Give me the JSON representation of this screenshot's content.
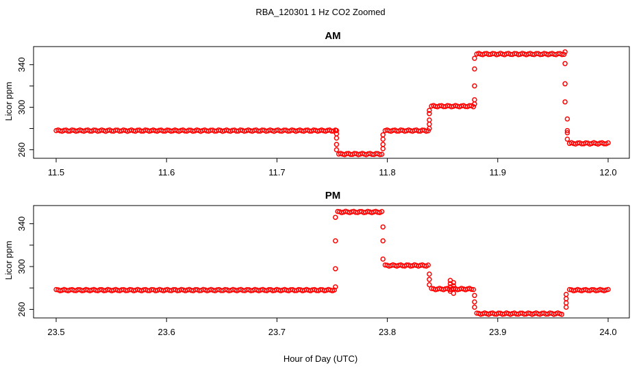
{
  "title": "RBA_120301  1 Hz CO2 Zoomed",
  "xlabel": "Hour of Day (UTC)",
  "chart_data": [
    {
      "type": "scatter",
      "title": "AM",
      "ylabel": "Licor ppm",
      "xlim": [
        11.5,
        12.0
      ],
      "ylim": [
        252,
        357
      ],
      "xticks": [
        "11.5",
        "11.6",
        "11.7",
        "11.8",
        "11.9",
        "12.0"
      ],
      "yticks": [
        "260",
        "300",
        "340"
      ],
      "minor_yticks": [
        280,
        320
      ],
      "marker": "open-circle",
      "color": "#ff0000",
      "segments": [
        {
          "x": [
            11.5,
            11.753
          ],
          "y": 278
        },
        {
          "x": [
            11.756,
            11.795
          ],
          "y": 256
        },
        {
          "x": [
            11.798,
            11.837
          ],
          "y": 278
        },
        {
          "x": [
            11.84,
            11.878
          ],
          "y": 301
        },
        {
          "x": [
            11.881,
            11.96
          ],
          "y": 350
        },
        {
          "x": [
            11.965,
            12.0
          ],
          "y": 266
        }
      ],
      "transitions": [
        {
          "x": 11.754,
          "y": [
            278,
            275,
            271,
            265,
            260
          ]
        },
        {
          "x": 11.796,
          "y": [
            261,
            265,
            270,
            274
          ]
        },
        {
          "x": 11.838,
          "y": [
            280,
            284,
            288,
            294,
            297
          ]
        },
        {
          "x": 11.879,
          "y": [
            303,
            307,
            320,
            336,
            346
          ]
        },
        {
          "x": 11.961,
          "y": [
            352,
            341,
            322,
            305
          ]
        },
        {
          "x": 11.963,
          "y": [
            289,
            278,
            276,
            270
          ]
        }
      ]
    },
    {
      "type": "scatter",
      "title": "PM",
      "ylabel": "Licor ppm",
      "xlim": [
        23.5,
        24.0
      ],
      "ylim": [
        252,
        357
      ],
      "xticks": [
        "23.5",
        "23.6",
        "23.7",
        "23.8",
        "23.9",
        "24.0"
      ],
      "yticks": [
        "260",
        "300",
        "340"
      ],
      "minor_yticks": [
        280,
        320
      ],
      "marker": "open-circle",
      "color": "#ff0000",
      "segments": [
        {
          "x": [
            23.5,
            23.752
          ],
          "y": 278
        },
        {
          "x": [
            23.755,
            23.795
          ],
          "y": 351
        },
        {
          "x": [
            23.798,
            23.837
          ],
          "y": 301
        },
        {
          "x": [
            23.84,
            23.878
          ],
          "y": 279
        },
        {
          "x": [
            23.881,
            23.958
          ],
          "y": 256
        },
        {
          "x": [
            23.965,
            24.0
          ],
          "y": 278
        }
      ],
      "transitions": [
        {
          "x": 23.753,
          "y": [
            281,
            298,
            324,
            346
          ]
        },
        {
          "x": 23.796,
          "y": [
            337,
            324,
            307
          ]
        },
        {
          "x": 23.838,
          "y": [
            293,
            288,
            283
          ]
        },
        {
          "x": 23.857,
          "y": [
            287,
            284,
            281,
            277
          ]
        },
        {
          "x": 23.86,
          "y": [
            285,
            282,
            279,
            275
          ]
        },
        {
          "x": 23.879,
          "y": [
            273,
            267,
            262
          ]
        },
        {
          "x": 23.962,
          "y": [
            262,
            266,
            270,
            274
          ]
        }
      ]
    }
  ]
}
